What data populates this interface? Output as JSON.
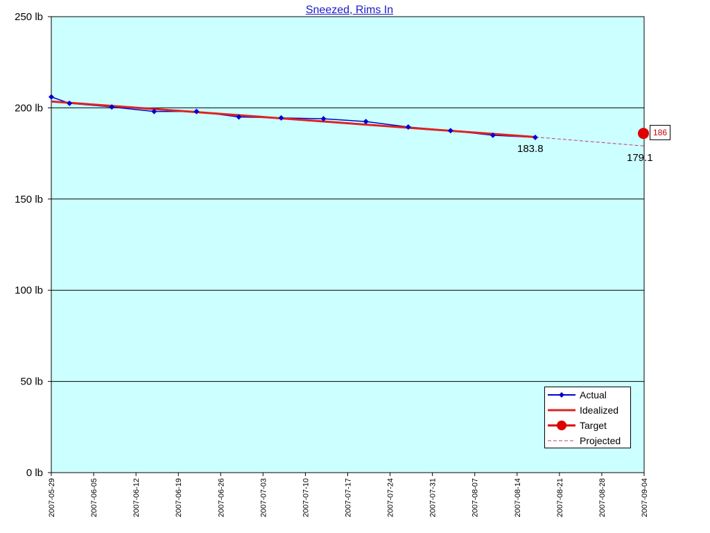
{
  "chart_data": {
    "type": "line",
    "title": "Sneezed, Rims In",
    "y_unit": "lb",
    "ylim": [
      0,
      250
    ],
    "y_ticks": [
      "0 lb",
      "50 lb",
      "100 lb",
      "150 lb",
      "200 lb",
      "250 lb"
    ],
    "x_ticks": [
      "2007-05-29",
      "2007-06-05",
      "2007-06-12",
      "2007-06-19",
      "2007-06-26",
      "2007-07-03",
      "2007-07-10",
      "2007-07-17",
      "2007-07-24",
      "2007-07-31",
      "2007-08-07",
      "2007-08-14",
      "2007-08-21",
      "2007-08-28",
      "2007-09-04"
    ],
    "xlim": [
      "2007-05-29",
      "2007-09-04"
    ],
    "grid": "horizontal",
    "background": "#ccffff",
    "legend_position": "bottom-right",
    "series": [
      {
        "name": "Actual",
        "color": "#0000cc",
        "marker": "diamond",
        "points": [
          [
            "2007-05-29",
            206.0
          ],
          [
            "2007-06-01",
            202.5
          ],
          [
            "2007-06-08",
            200.5
          ],
          [
            "2007-06-15",
            198.0
          ],
          [
            "2007-06-22",
            198.0
          ],
          [
            "2007-06-29",
            195.0
          ],
          [
            "2007-07-06",
            194.5
          ],
          [
            "2007-07-13",
            194.0
          ],
          [
            "2007-07-20",
            192.5
          ],
          [
            "2007-07-27",
            189.5
          ],
          [
            "2007-08-03",
            187.5
          ],
          [
            "2007-08-10",
            185.0
          ],
          [
            "2007-08-17",
            183.8
          ]
        ]
      },
      {
        "name": "Idealized",
        "color": "#dd2222",
        "points": [
          [
            "2007-05-29",
            203.5
          ],
          [
            "2007-08-17",
            184.0
          ]
        ]
      },
      {
        "name": "Target",
        "color": "#dd0000",
        "marker": "circle",
        "points": [
          [
            "2007-09-04",
            186
          ]
        ]
      },
      {
        "name": "Projected",
        "color": "#cc3377",
        "style": "dashed",
        "points": [
          [
            "2007-08-17",
            184.0
          ],
          [
            "2007-09-04",
            179.1
          ]
        ]
      }
    ],
    "annotations": {
      "last_actual": "183.8",
      "projected_end": "179.1",
      "target_value": "186"
    }
  }
}
